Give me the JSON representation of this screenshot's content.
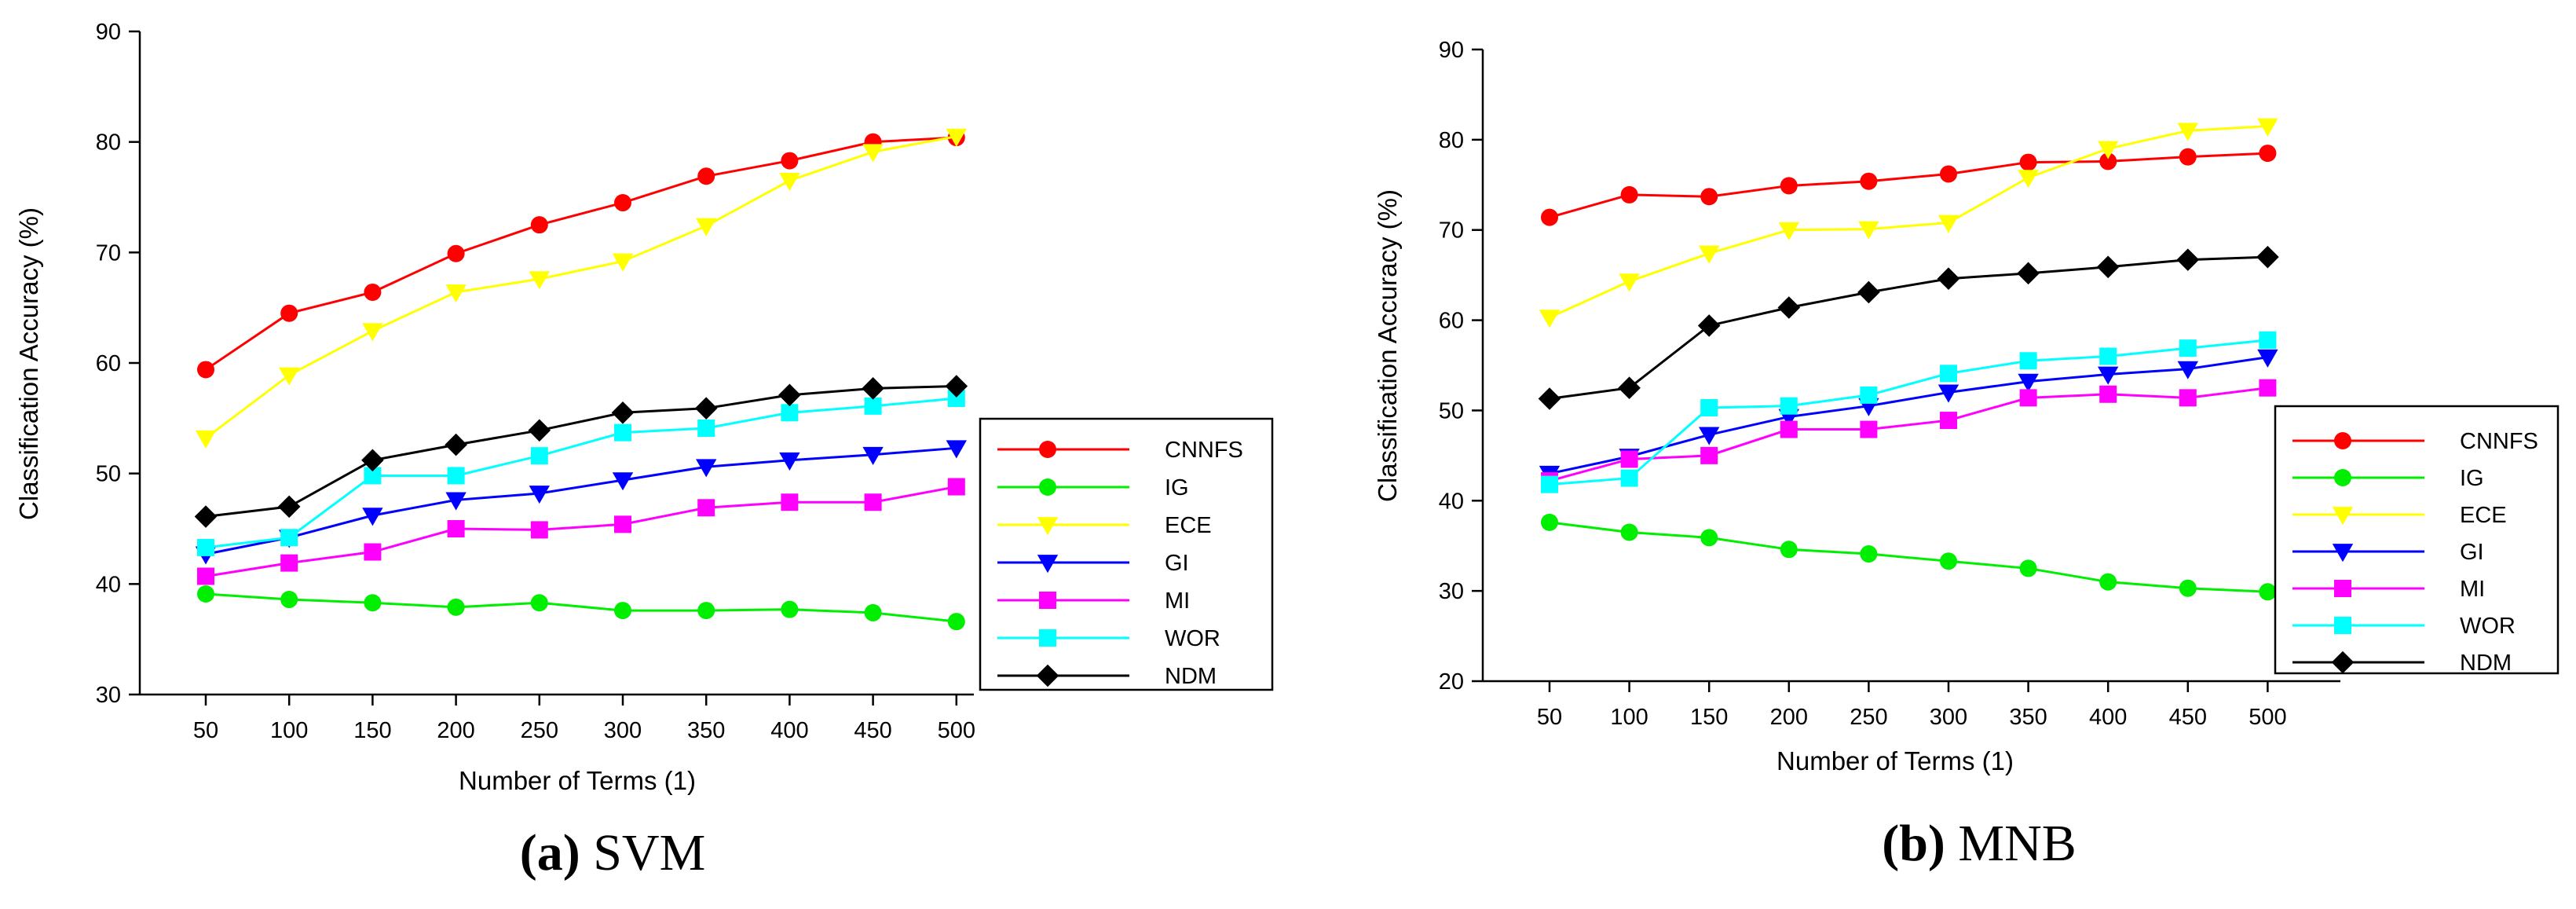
{
  "chart_data": [
    {
      "type": "line",
      "panel_label": "(a)",
      "caption": "SVM",
      "xlabel": "Number of Terms (1)",
      "ylabel": "Classification Accuracy (%)",
      "ylim": [
        30,
        90
      ],
      "yticks": [
        30,
        40,
        50,
        60,
        70,
        80,
        90
      ],
      "categories": [
        "50",
        "100",
        "150",
        "200",
        "250",
        "300",
        "350",
        "400",
        "450",
        "500"
      ],
      "legend_position": "right-middle",
      "series": [
        {
          "name": "CNNFS",
          "color": "#ff0000",
          "marker": "circle",
          "values": [
            59.4,
            64.5,
            66.4,
            69.9,
            72.5,
            74.5,
            76.9,
            78.3,
            80.0,
            80.4
          ]
        },
        {
          "name": "IG",
          "color": "#00ee00",
          "marker": "circle",
          "values": [
            39.1,
            38.6,
            38.3,
            37.9,
            38.3,
            37.6,
            37.6,
            37.7,
            37.4,
            36.6
          ]
        },
        {
          "name": "ECE",
          "color": "#ffff00",
          "marker": "triangle-down",
          "values": [
            53.2,
            58.9,
            62.9,
            66.4,
            67.6,
            69.2,
            72.4,
            76.5,
            79.1,
            80.5
          ]
        },
        {
          "name": "GI",
          "color": "#0000ff",
          "marker": "triangle-down",
          "values": [
            42.7,
            44.2,
            46.2,
            47.6,
            48.2,
            49.4,
            50.6,
            51.2,
            51.7,
            52.3
          ]
        },
        {
          "name": "MI",
          "color": "#ff00ff",
          "marker": "square",
          "values": [
            40.7,
            41.9,
            42.9,
            45.0,
            44.9,
            45.4,
            46.9,
            47.4,
            47.4,
            48.8
          ]
        },
        {
          "name": "WOR",
          "color": "#00ffff",
          "marker": "square",
          "values": [
            43.3,
            44.2,
            49.8,
            49.8,
            51.6,
            53.7,
            54.1,
            55.5,
            56.1,
            56.8
          ]
        },
        {
          "name": "NDM",
          "color": "#000000",
          "marker": "diamond",
          "values": [
            46.1,
            47.0,
            51.2,
            52.6,
            53.9,
            55.5,
            55.9,
            57.1,
            57.7,
            57.9
          ]
        }
      ]
    },
    {
      "type": "line",
      "panel_label": "(b)",
      "caption": "MNB",
      "xlabel": "Number of Terms (1)",
      "ylabel": "Classification Accuracy (%)",
      "ylim": [
        20,
        90
      ],
      "yticks": [
        20,
        30,
        40,
        50,
        60,
        70,
        80,
        90
      ],
      "categories": [
        "50",
        "100",
        "150",
        "200",
        "250",
        "300",
        "350",
        "400",
        "450",
        "500"
      ],
      "legend_position": "right-lower",
      "series": [
        {
          "name": "CNNFS",
          "color": "#ff0000",
          "marker": "circle",
          "values": [
            71.4,
            73.9,
            73.7,
            74.9,
            75.4,
            76.2,
            77.5,
            77.6,
            78.1,
            78.5
          ]
        },
        {
          "name": "IG",
          "color": "#00ee00",
          "marker": "circle",
          "values": [
            37.6,
            36.5,
            35.9,
            34.6,
            34.1,
            33.3,
            32.5,
            31.0,
            30.3,
            29.9
          ]
        },
        {
          "name": "ECE",
          "color": "#ffff00",
          "marker": "triangle-down",
          "values": [
            60.3,
            64.3,
            67.4,
            70.0,
            70.1,
            70.8,
            75.8,
            79.0,
            81.0,
            81.5
          ]
        },
        {
          "name": "GI",
          "color": "#0000ff",
          "marker": "triangle-down",
          "values": [
            43.0,
            44.9,
            47.3,
            49.3,
            50.5,
            52.0,
            53.2,
            54.0,
            54.6,
            55.9
          ]
        },
        {
          "name": "MI",
          "color": "#ff00ff",
          "marker": "square",
          "values": [
            42.2,
            44.6,
            45.0,
            47.9,
            47.9,
            48.9,
            51.4,
            51.8,
            51.4,
            52.5
          ]
        },
        {
          "name": "WOR",
          "color": "#00ffff",
          "marker": "square",
          "values": [
            41.8,
            42.5,
            50.3,
            50.5,
            51.7,
            54.1,
            55.5,
            56.0,
            56.9,
            57.8
          ]
        },
        {
          "name": "NDM",
          "color": "#000000",
          "marker": "diamond",
          "values": [
            51.3,
            52.5,
            59.4,
            61.4,
            63.1,
            64.6,
            65.2,
            65.9,
            66.7,
            67.0
          ]
        }
      ]
    }
  ]
}
